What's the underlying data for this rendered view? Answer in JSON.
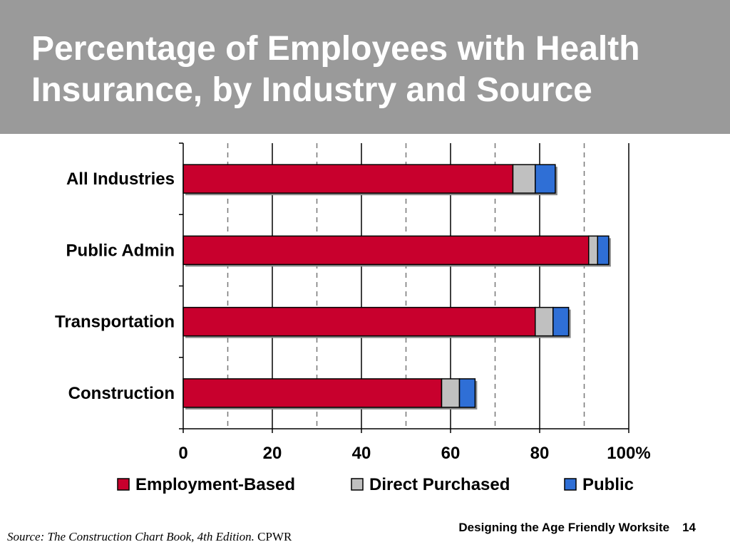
{
  "slide": {
    "title": "Percentage of Employees with Health Insurance, by Industry and Source",
    "footer_text": "Designing the Age Friendly Worksite",
    "page_number": "14",
    "source_prefix": "Source:  The Construction Chart Book, 4th Edition.",
    "source_suffix": " CPWR"
  },
  "colors": {
    "title_bar": "#9a9a9a",
    "employment_based": "#c8002d",
    "direct_purchased": "#c0c0c0",
    "public": "#2f6fd6"
  },
  "chart_data": {
    "type": "bar",
    "orientation": "horizontal",
    "stacked": true,
    "categories": [
      "All Industries",
      "Public Admin",
      "Transportation",
      "Construction"
    ],
    "series": [
      {
        "name": "Employment-Based",
        "values": [
          74,
          91,
          79,
          58
        ]
      },
      {
        "name": "Direct Purchased",
        "values": [
          5,
          2,
          4,
          4
        ]
      },
      {
        "name": "Public",
        "values": [
          4.5,
          2.5,
          3.5,
          3.5
        ]
      }
    ],
    "xlim": [
      0,
      100
    ],
    "xticks": [
      0,
      20,
      40,
      60,
      80,
      100
    ],
    "xtick_labels": [
      "0",
      "20",
      "40",
      "60",
      "80",
      "100%"
    ],
    "grid": "vertical gridlines: solid at 20-unit ticks, dashed at 10-unit midpoints",
    "legend_position": "bottom"
  }
}
